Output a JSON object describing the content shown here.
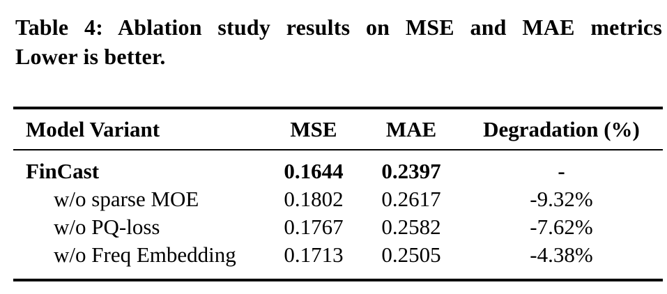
{
  "caption": {
    "line1": "Table 4: Ablation study results on MSE and MAE metrics",
    "line2": "Lower is better."
  },
  "table": {
    "columns": [
      "Model Variant",
      "MSE",
      "MAE",
      "Degradation (%)"
    ],
    "rows": [
      {
        "variant": "FinCast",
        "mse": "0.1644",
        "mae": "0.2397",
        "degradation": "-"
      },
      {
        "variant": "w/o sparse MOE",
        "mse": "0.1802",
        "mae": "0.2617",
        "degradation": "-9.32%"
      },
      {
        "variant": "w/o PQ-loss",
        "mse": "0.1767",
        "mae": "0.2582",
        "degradation": "-7.62%"
      },
      {
        "variant": "w/o Freq Embedding",
        "mse": "0.1713",
        "mae": "0.2505",
        "degradation": "-4.38%"
      }
    ]
  },
  "colors": {
    "text": "#000000",
    "background": "#ffffff",
    "rule": "#000000"
  }
}
